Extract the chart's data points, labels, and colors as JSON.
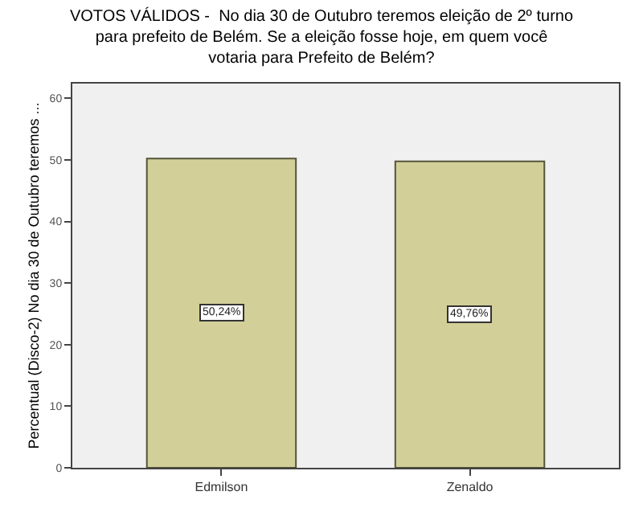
{
  "chart_data": {
    "type": "bar",
    "title": "VOTOS VÁLIDOS -  No dia 30 de Outubro teremos eleição de 2º turno para prefeito de Belém. Se a eleição fosse hoje, em quem você votaria para Prefeito de Belém?",
    "ylabel": "Percentual (Disco-2) No dia 30 de Outubro teremos ...",
    "categories": [
      "Edmilson",
      "Zenaldo"
    ],
    "values": [
      50.24,
      49.76
    ],
    "value_labels": [
      "50,24%",
      "49,76%"
    ],
    "color": "#d3cf99",
    "ylim": [
      0,
      62.4
    ],
    "yticks": [
      0,
      10,
      20,
      30,
      40,
      50,
      60
    ],
    "grid": false,
    "legend": false
  }
}
